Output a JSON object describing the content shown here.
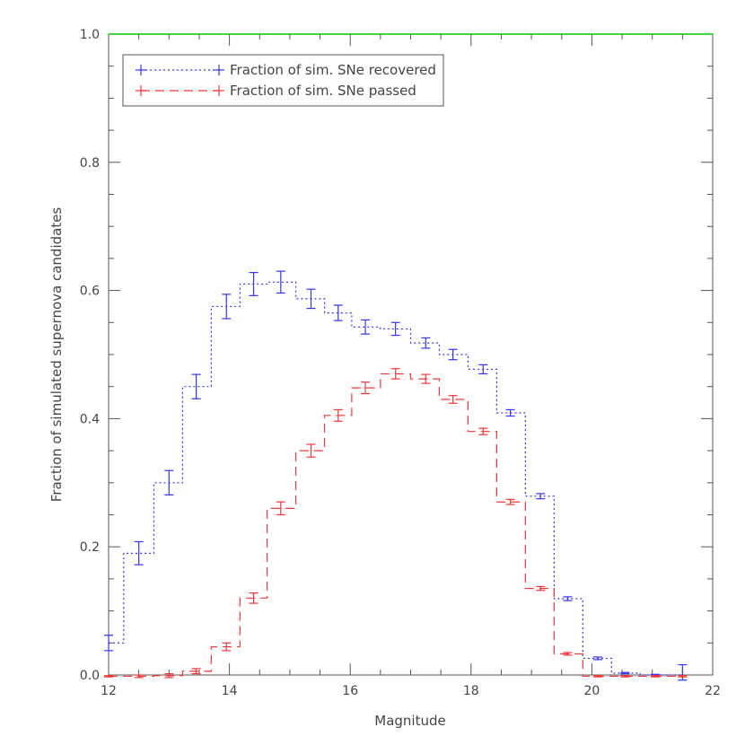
{
  "chart_data": {
    "type": "line",
    "drawstyle": "steps-mid",
    "xlabel": "Magnitude",
    "ylabel": "Fraction of simulated supernova candidates",
    "xlim": [
      12,
      22
    ],
    "ylim": [
      0,
      1.0
    ],
    "x_ticks": [
      "12",
      "14",
      "16",
      "18",
      "20",
      "22"
    ],
    "y_ticks": [
      "0.0",
      "0.2",
      "0.4",
      "0.6",
      "0.8",
      "1.0"
    ],
    "grid": false,
    "legend_position": "top-left",
    "reference_line": {
      "y": 1.0,
      "color": "#00cc00"
    },
    "x": [
      12.0,
      12.5,
      13.0,
      13.45,
      13.95,
      14.4,
      14.85,
      15.35,
      15.8,
      16.25,
      16.75,
      17.25,
      17.7,
      18.2,
      18.65,
      19.15,
      19.6,
      20.1,
      20.55,
      21.05,
      21.5
    ],
    "series": [
      {
        "name": "Fraction of sim. SNe recovered",
        "color": "#3333ff",
        "linestyle": "dotted",
        "values": [
          0.05,
          0.19,
          0.3,
          0.45,
          0.575,
          0.61,
          0.613,
          0.587,
          0.565,
          0.543,
          0.54,
          0.518,
          0.5,
          0.477,
          0.409,
          0.279,
          0.119,
          0.026,
          0.003,
          0.0,
          0.0
        ],
        "errors": [
          0.012,
          0.018,
          0.019,
          0.019,
          0.019,
          0.018,
          0.017,
          0.015,
          0.012,
          0.011,
          0.01,
          0.008,
          0.008,
          0.007,
          0.005,
          0.004,
          0.003,
          0.002,
          0.001,
          0.001,
          0.016
        ]
      },
      {
        "name": "Fraction of sim. SNe passed",
        "color": "#ff3333",
        "linestyle": "dashed",
        "values": [
          -0.002,
          -0.002,
          -0.001,
          0.006,
          0.044,
          0.12,
          0.26,
          0.35,
          0.405,
          0.448,
          0.47,
          0.462,
          0.43,
          0.38,
          0.27,
          0.135,
          0.033,
          -0.002,
          -0.002,
          -0.002,
          -0.002
        ],
        "errors": [
          0.001,
          0.002,
          0.003,
          0.004,
          0.006,
          0.008,
          0.01,
          0.01,
          0.009,
          0.009,
          0.008,
          0.007,
          0.006,
          0.005,
          0.004,
          0.003,
          0.002,
          0.001,
          0.001,
          0.001,
          0.001
        ]
      }
    ]
  }
}
